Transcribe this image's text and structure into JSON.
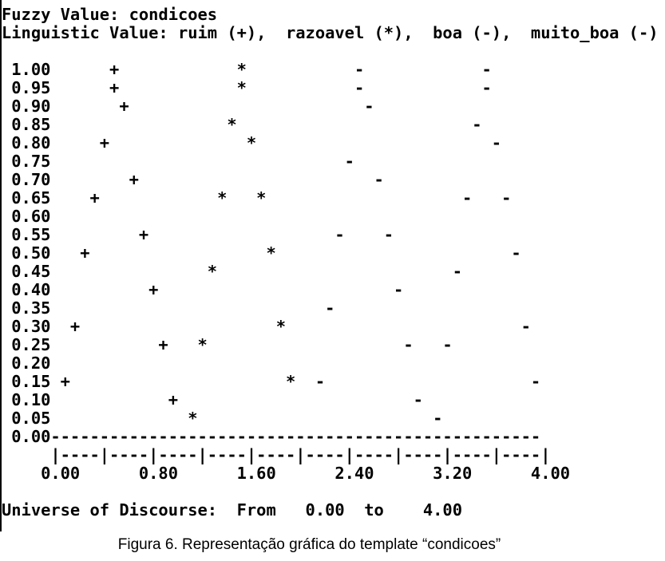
{
  "console": {
    "header": [
      "Fuzzy Value: condicoes",
      "Linguistic Value: ruim (+),  razoavel (*),  boa (-),  muito_boa (-)"
    ],
    "plot_rows": [
      " 1.00      +            *           -            -",
      " 0.95      +            *           -            -",
      " 0.90       +                        -",
      " 0.85                  *                        -",
      " 0.80     +              *                        -",
      " 0.75                              -",
      " 0.70        +                        -",
      " 0.65    +            *   *                    -   -",
      " 0.60",
      " 0.55         +                   -    -",
      " 0.50   +                  *                        -",
      " 0.45                *                        -",
      " 0.40          +                        -",
      " 0.35                            -",
      " 0.30  +                    *                        -",
      " 0.25           +   *                    -   -",
      " 0.20",
      " 0.15 +                      *  -                     -",
      " 0.10            +                        -",
      " 0.05              *                        -",
      " 0.00--------------------------------------------------"
    ],
    "axis_ticks": "     |----|----|----|----|----|----|----|----|----|----|",
    "axis_labels": "    0.00      0.80      1.60      2.40      3.20      4.00",
    "universe": "Universe of Discourse:  From   0.00  to    4.00"
  },
  "caption": "Figura 6. Representação gráfica do template “condicoes”"
}
